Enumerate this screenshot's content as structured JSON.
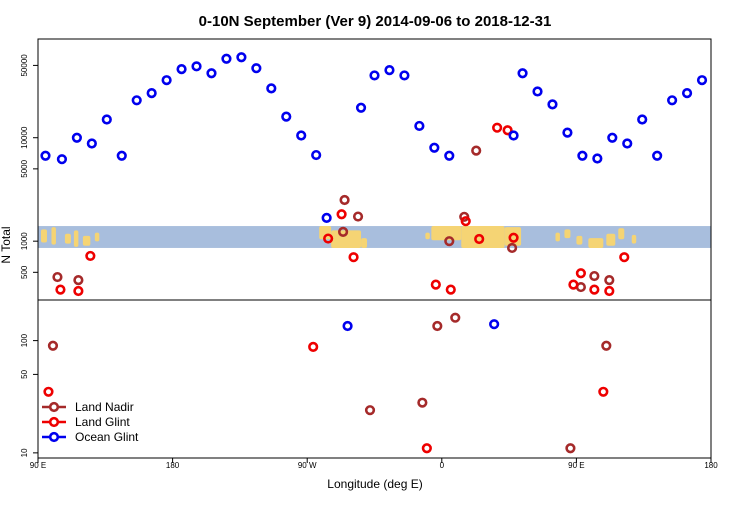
{
  "chart_data": {
    "type": "scatter",
    "title": "0-10N September (Ver 9)   2014-09-06 to 2018-12-31",
    "xlabel": "Longitude (deg E)",
    "ylabel": "N Total",
    "x_ticks": [
      {
        "value": 90,
        "label": "90 E"
      },
      {
        "value": 180,
        "label": "180"
      },
      {
        "value": 270,
        "label": "90 W"
      },
      {
        "value": 360,
        "label": "0"
      },
      {
        "value": 450,
        "label": "90 E"
      },
      {
        "value": 540,
        "label": "180"
      }
    ],
    "xlim": [
      90,
      540
    ],
    "upper_panel": {
      "scale": "log",
      "ylim": [
        270,
        90000
      ],
      "y_ticks": [
        500,
        1000,
        5000,
        10000,
        50000
      ]
    },
    "lower_panel": {
      "scale": "log",
      "ylim": [
        9,
        230
      ],
      "y_ticks": [
        10,
        50,
        100
      ]
    },
    "map_strip": {
      "y_range": [
        860,
        1400
      ],
      "ocean_color": "#a8bedd",
      "land_color": "#f5d474"
    },
    "series": [
      {
        "name": "Land Nadir",
        "color": "#a52a2a",
        "upper": [
          {
            "x": 103,
            "y": 450
          },
          {
            "x": 117,
            "y": 420
          },
          {
            "x": 294,
            "y": 1230
          },
          {
            "x": 295,
            "y": 2500
          },
          {
            "x": 304,
            "y": 1730
          },
          {
            "x": 383,
            "y": 7500
          },
          {
            "x": 407,
            "y": 860
          },
          {
            "x": 375,
            "y": 1720
          },
          {
            "x": 365,
            "y": 1000
          },
          {
            "x": 453,
            "y": 360
          },
          {
            "x": 462,
            "y": 460
          },
          {
            "x": 472,
            "y": 420
          }
        ],
        "lower": [
          {
            "x": 100,
            "y": 90
          },
          {
            "x": 312,
            "y": 24
          },
          {
            "x": 347,
            "y": 28
          },
          {
            "x": 357,
            "y": 135
          },
          {
            "x": 369,
            "y": 160
          },
          {
            "x": 470,
            "y": 90
          },
          {
            "x": 446,
            "y": 11
          }
        ]
      },
      {
        "name": "Land Glint",
        "color": "#ee0000",
        "upper": [
          {
            "x": 105,
            "y": 340
          },
          {
            "x": 117,
            "y": 330
          },
          {
            "x": 125,
            "y": 720
          },
          {
            "x": 284,
            "y": 1060
          },
          {
            "x": 293,
            "y": 1820
          },
          {
            "x": 301,
            "y": 700
          },
          {
            "x": 356,
            "y": 380
          },
          {
            "x": 366,
            "y": 340
          },
          {
            "x": 376,
            "y": 1560
          },
          {
            "x": 385,
            "y": 1050
          },
          {
            "x": 397,
            "y": 12500
          },
          {
            "x": 404,
            "y": 11800
          },
          {
            "x": 408,
            "y": 1080
          },
          {
            "x": 448,
            "y": 380
          },
          {
            "x": 453,
            "y": 490
          },
          {
            "x": 462,
            "y": 340
          },
          {
            "x": 472,
            "y": 330
          },
          {
            "x": 482,
            "y": 700
          }
        ],
        "lower": [
          {
            "x": 97,
            "y": 35
          },
          {
            "x": 274,
            "y": 88
          },
          {
            "x": 350,
            "y": 11
          },
          {
            "x": 468,
            "y": 35
          }
        ]
      },
      {
        "name": "Ocean Glint",
        "color": "#0000ee",
        "upper": [
          {
            "x": 95,
            "y": 6700
          },
          {
            "x": 106,
            "y": 6200
          },
          {
            "x": 116,
            "y": 10000
          },
          {
            "x": 126,
            "y": 8800
          },
          {
            "x": 136,
            "y": 15000
          },
          {
            "x": 146,
            "y": 6700
          },
          {
            "x": 156,
            "y": 23000
          },
          {
            "x": 166,
            "y": 27000
          },
          {
            "x": 176,
            "y": 36000
          },
          {
            "x": 186,
            "y": 46000
          },
          {
            "x": 196,
            "y": 49000
          },
          {
            "x": 206,
            "y": 42000
          },
          {
            "x": 216,
            "y": 58000
          },
          {
            "x": 226,
            "y": 60000
          },
          {
            "x": 236,
            "y": 47000
          },
          {
            "x": 246,
            "y": 30000
          },
          {
            "x": 256,
            "y": 16000
          },
          {
            "x": 266,
            "y": 10500
          },
          {
            "x": 276,
            "y": 6800
          },
          {
            "x": 283,
            "y": 1680
          },
          {
            "x": 306,
            "y": 19500
          },
          {
            "x": 315,
            "y": 40000
          },
          {
            "x": 325,
            "y": 45000
          },
          {
            "x": 335,
            "y": 40000
          },
          {
            "x": 345,
            "y": 13000
          },
          {
            "x": 355,
            "y": 8000
          },
          {
            "x": 365,
            "y": 6700
          },
          {
            "x": 408,
            "y": 10500
          },
          {
            "x": 414,
            "y": 42000
          },
          {
            "x": 424,
            "y": 28000
          },
          {
            "x": 434,
            "y": 21000
          },
          {
            "x": 444,
            "y": 11200
          },
          {
            "x": 454,
            "y": 6700
          },
          {
            "x": 464,
            "y": 6300
          },
          {
            "x": 474,
            "y": 10000
          },
          {
            "x": 484,
            "y": 8800
          },
          {
            "x": 494,
            "y": 15000
          },
          {
            "x": 504,
            "y": 6700
          },
          {
            "x": 514,
            "y": 23000
          },
          {
            "x": 524,
            "y": 27000
          },
          {
            "x": 534,
            "y": 36000
          }
        ],
        "lower": [
          {
            "x": 297,
            "y": 135
          },
          {
            "x": 395,
            "y": 140
          }
        ]
      }
    ],
    "legend": {
      "placement": "bottom-left"
    }
  }
}
